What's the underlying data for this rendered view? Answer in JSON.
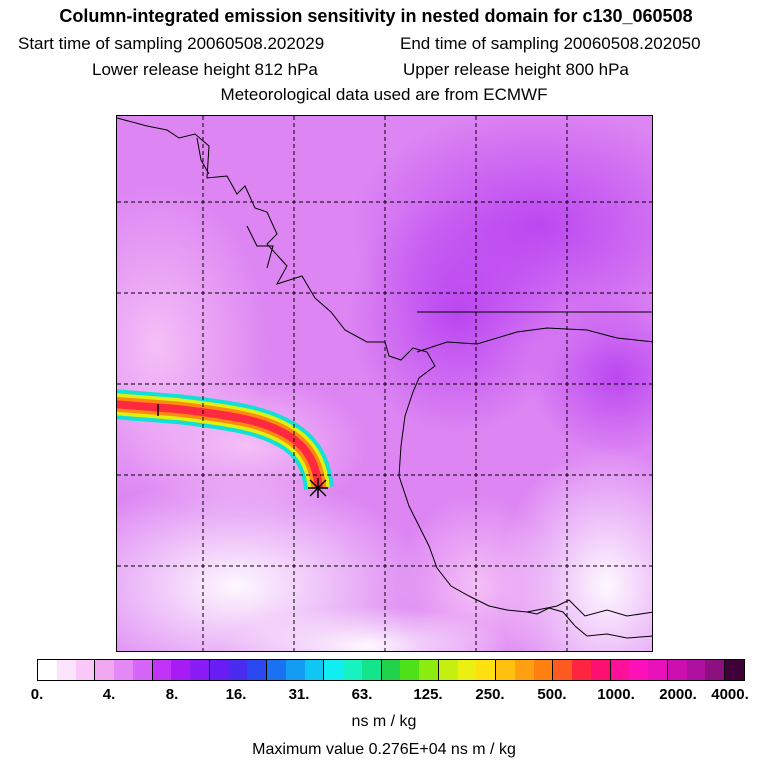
{
  "header": {
    "title": "Column-integrated emission sensitivity in nested domain for c130_060508",
    "start_label": "Start time of sampling 20060508.202029",
    "end_label": "End time of sampling 20060508.202050",
    "lower_label": "Lower release height  812 hPa",
    "upper_label": "Upper release height  800 hPa",
    "met_label": "Meteorological data used are from ECMWF"
  },
  "map": {
    "receptor_marker": "asterisk-icon",
    "coastline_color": "#000000",
    "grid_style": "dashed"
  },
  "colorbar": {
    "colors": [
      "#ffffff",
      "#fde4fd",
      "#f9c8f9",
      "#f0a8f0",
      "#e388f5",
      "#d566f8",
      "#c233f8",
      "#a71cf5",
      "#8a1cf5",
      "#6a1cf5",
      "#4a2cf0",
      "#2a48f2",
      "#1a72f2",
      "#129cf2",
      "#10c6f2",
      "#10eef2",
      "#18f2c2",
      "#14e48a",
      "#22d24a",
      "#4ee018",
      "#8cec10",
      "#c4f010",
      "#ecf010",
      "#ffe010",
      "#ffc010",
      "#ffa010",
      "#ff8010",
      "#ff5a20",
      "#ff2440",
      "#ff1070",
      "#ff1098",
      "#ff10b8",
      "#e810b8",
      "#cc10b0",
      "#b010a0",
      "#8c1080",
      "#400038"
    ],
    "tick_labels": [
      "0.",
      "4.",
      "8.",
      "16.",
      "31.",
      "63.",
      "125.",
      "250.",
      "500.",
      "1000.",
      "2000.",
      "4000."
    ],
    "units": "ns m / kg"
  },
  "footer": {
    "max_label": "Maximum value  0.276E+04 ns m / kg"
  }
}
